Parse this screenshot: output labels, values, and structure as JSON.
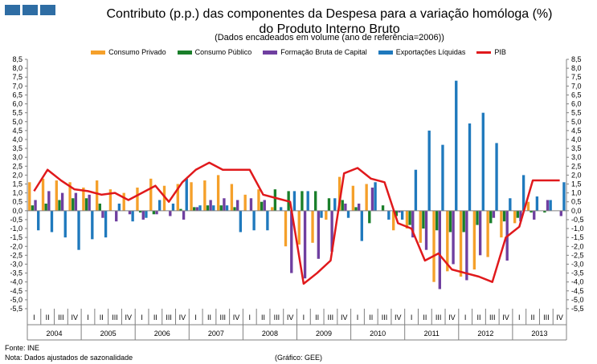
{
  "header": {
    "title_line1": "Contributo (p.p.) das componentes da Despesa para a variação homóloga (%)",
    "title_line2": "do Produto Interno Bruto",
    "subtitle": "(Dados encadeados em volume (ano de referência=2006))"
  },
  "footer": {
    "fonte": "Fonte:  INE",
    "nota": "Nota:  Dados  ajustados  de sazonalidade",
    "grafico": "(Gráfico:  GEE)"
  },
  "chart_data": {
    "type": "bar",
    "title": "Contributo (p.p.) das componentes da Despesa para a variação homóloga (%) do Produto Interno Bruto",
    "subtitle": "(Dados encadeados em volume (ano de referência=2006))",
    "ylim": [
      -5.5,
      8.5
    ],
    "ytick_step": 0.5,
    "yticks": [
      "8,5",
      "8,0",
      "7,5",
      "7,0",
      "6,5",
      "6,0",
      "5,5",
      "5,0",
      "4,5",
      "4,0",
      "3,5",
      "3,0",
      "2,5",
      "2,0",
      "1,5",
      "1,0",
      "0,5",
      "0,0",
      "-0,5",
      "-1,0",
      "-1,5",
      "-2,0",
      "-2,5",
      "-3,0",
      "-3,5",
      "-4,0",
      "-4,5",
      "-5,0",
      "-5,5"
    ],
    "quarters": [
      "I",
      "II",
      "III",
      "IV",
      "I",
      "II",
      "III",
      "IV",
      "I",
      "II",
      "III",
      "IV",
      "I",
      "II",
      "III",
      "IV",
      "I",
      "II",
      "III",
      "IV",
      "I",
      "II",
      "III",
      "IV",
      "I",
      "II",
      "III",
      "IV",
      "I",
      "II",
      "III",
      "IV",
      "I",
      "II",
      "III",
      "IV",
      "I",
      "II",
      "III",
      "IV"
    ],
    "years": [
      "2004",
      "2005",
      "2006",
      "2007",
      "2008",
      "2009",
      "2010",
      "2011",
      "2012",
      "2013"
    ],
    "series": [
      {
        "name": "Consumo Privado",
        "color": "#f5a02a",
        "kind": "bar",
        "values": [
          1.6,
          1.8,
          1.7,
          1.6,
          1.3,
          1.7,
          1.2,
          1.0,
          1.3,
          1.8,
          1.4,
          1.5,
          1.6,
          1.7,
          2.0,
          1.5,
          0.9,
          1.2,
          0.2,
          -2.0,
          -1.9,
          -1.8,
          -0.5,
          1.9,
          1.4,
          1.5,
          0.0,
          -1.1,
          -1.0,
          -1.8,
          -4.0,
          -3.4,
          -3.7,
          -3.3,
          -2.6,
          -1.5,
          -0.7,
          0.5,
          0.0,
          0.0
        ]
      },
      {
        "name": "Consumo Público",
        "color": "#1a7f2a",
        "kind": "bar",
        "values": [
          0.3,
          0.4,
          0.6,
          0.7,
          0.7,
          0.4,
          0.0,
          0.0,
          -0.1,
          -0.2,
          0.0,
          0.1,
          0.2,
          0.3,
          0.3,
          0.2,
          0.0,
          0.5,
          1.2,
          1.1,
          1.1,
          1.1,
          0.7,
          0.6,
          0.2,
          -0.7,
          0.3,
          -0.3,
          -0.8,
          -1.0,
          -1.1,
          -1.2,
          -1.2,
          -0.8,
          -0.7,
          -0.6,
          -0.4,
          -0.1,
          -0.1,
          0.0
        ]
      },
      {
        "name": "Formação Bruta de Capital",
        "color": "#6f3fa0",
        "kind": "bar",
        "values": [
          0.6,
          1.1,
          1.0,
          1.0,
          0.9,
          -0.4,
          -0.6,
          -0.2,
          -0.5,
          -0.2,
          -0.3,
          -0.5,
          0.2,
          0.6,
          0.7,
          0.6,
          0.7,
          0.6,
          0.0,
          -3.5,
          -3.8,
          -2.7,
          -2.3,
          0.4,
          0.4,
          1.3,
          0.0,
          -0.1,
          -1.5,
          -2.2,
          -4.4,
          -3.0,
          -3.9,
          -2.5,
          -0.4,
          -2.8,
          -0.6,
          -0.5,
          0.6,
          -0.3
        ]
      },
      {
        "name": "Exportações Líquidas",
        "color": "#1f79bd",
        "kind": "bar",
        "values": [
          -1.1,
          -1.2,
          -1.5,
          -2.2,
          -1.6,
          -1.5,
          0.4,
          -0.6,
          -0.4,
          0.6,
          0.4,
          1.8,
          0.3,
          0.3,
          0.3,
          -1.2,
          -1.1,
          -1.1,
          0.2,
          1.1,
          1.1,
          -0.4,
          0.7,
          -0.4,
          -1.7,
          1.6,
          -0.5,
          -0.5,
          2.3,
          4.5,
          3.7,
          7.3,
          4.9,
          5.5,
          3.8,
          0.7,
          2.0,
          0.8,
          0.6,
          1.6
        ]
      },
      {
        "name": "PIB",
        "color": "#e0191c",
        "kind": "line",
        "values": [
          1.1,
          2.3,
          1.7,
          1.2,
          1.1,
          0.9,
          1.0,
          0.6,
          1.0,
          1.4,
          0.5,
          1.6,
          2.3,
          2.7,
          2.3,
          2.3,
          2.3,
          0.9,
          0.7,
          0.5,
          -4.1,
          -3.5,
          -2.8,
          2.1,
          2.4,
          1.8,
          1.6,
          -0.7,
          -1.0,
          -2.8,
          -2.4,
          -3.3,
          -3.5,
          -3.7,
          -4.0,
          -1.5,
          -0.9,
          1.7,
          1.7,
          1.7
        ]
      }
    ]
  },
  "legend": [
    {
      "label": "Consumo Privado",
      "color": "#f5a02a"
    },
    {
      "label": "Consumo Público",
      "color": "#1a7f2a"
    },
    {
      "label": "Formação Bruta de Capital",
      "color": "#6f3fa0"
    },
    {
      "label": "Exportações  Líquidas",
      "color": "#1f79bd"
    },
    {
      "label": "PIB",
      "color": "#e0191c"
    }
  ]
}
